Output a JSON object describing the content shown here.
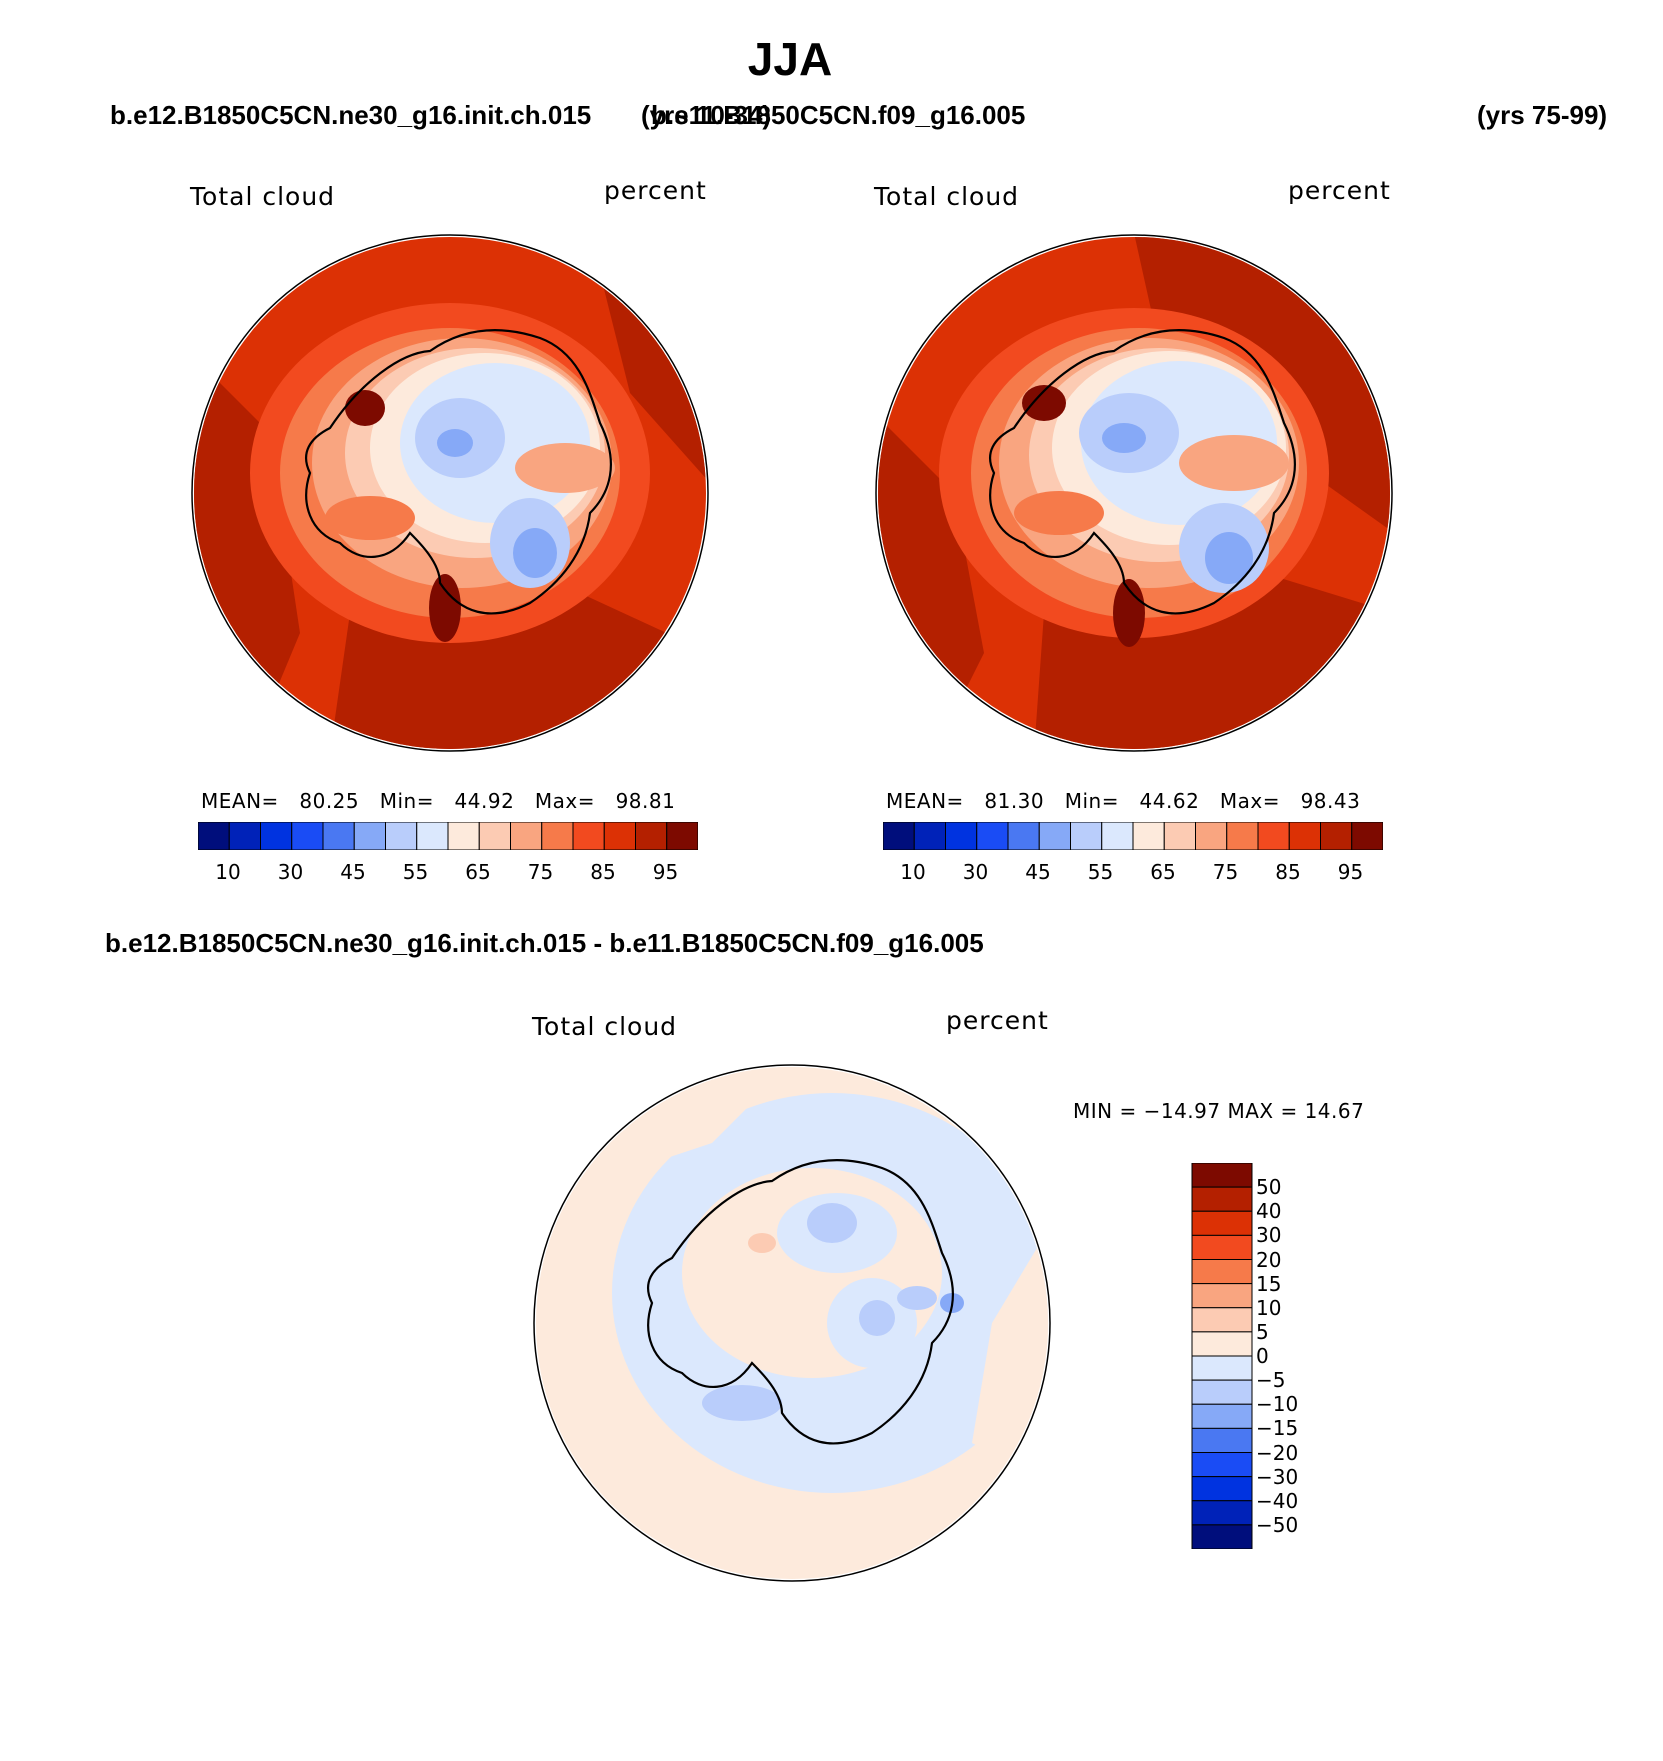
{
  "title": "JJA",
  "panels": [
    {
      "case": "b.e12.B1850C5CN.ne30_g16.init.ch.015",
      "years": "(yrs 10-34)",
      "left_label": "Total cloud",
      "right_label": "percent",
      "stats": {
        "mean_label": "MEAN=",
        "mean": "80.25",
        "min_label": "Min=",
        "min": "44.92",
        "max_label": "Max=",
        "max": "98.81"
      },
      "colorbar_ticks": [
        "10",
        "30",
        "45",
        "55",
        "65",
        "75",
        "85",
        "95"
      ]
    },
    {
      "case": "b.e11.B1850C5CN.f09_g16.005",
      "years": "(yrs 75-99)",
      "left_label": "Total cloud",
      "right_label": "percent",
      "stats": {
        "mean_label": "MEAN=",
        "mean": "81.30",
        "min_label": "Min=",
        "min": "44.62",
        "max_label": "Max=",
        "max": "98.43"
      },
      "colorbar_ticks": [
        "10",
        "30",
        "45",
        "55",
        "65",
        "75",
        "85",
        "95"
      ]
    }
  ],
  "diff_panel": {
    "case": "b.e12.B1850C5CN.ne30_g16.init.ch.015 - b.e11.B1850C5CN.f09_g16.005",
    "left_label": "Total cloud",
    "right_label": "percent",
    "minmax": "MIN = −14.97 MAX =   14.67",
    "colorbar_ticks": [
      "50",
      "40",
      "30",
      "20",
      "15",
      "10",
      "5",
      "0",
      "−5",
      "−10",
      "−15",
      "−20",
      "−30",
      "−40",
      "−50"
    ]
  },
  "colors": {
    "abs_scale": [
      "#000e7c",
      "#0022b8",
      "#0033e0",
      "#1a4cf5",
      "#4a78f2",
      "#86a9f7",
      "#b9cdfb",
      "#dbe8fd",
      "#fdeadc",
      "#fccbb3",
      "#f9a580",
      "#f67a4a",
      "#f24a1f",
      "#dc3105",
      "#b42000",
      "#7d0a00"
    ],
    "diff_scale": [
      "#7d0a00",
      "#b42000",
      "#dc3105",
      "#f24a1f",
      "#f67a4a",
      "#f9a580",
      "#fccbb3",
      "#fdeadc",
      "#dbe8fd",
      "#b9cdfb",
      "#86a9f7",
      "#4a78f2",
      "#1a4cf5",
      "#0033e0",
      "#0022b8",
      "#000e7c"
    ]
  }
}
